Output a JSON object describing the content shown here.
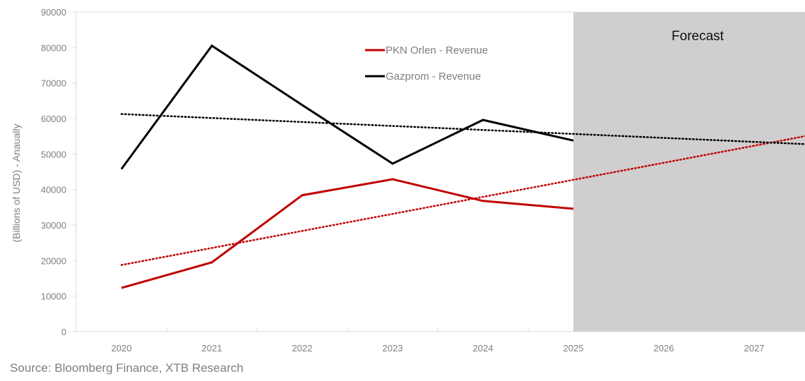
{
  "chart_data": {
    "type": "line",
    "title": "",
    "xlabel": "",
    "ylabel": "(Billions of USD) - Anaually",
    "categories": [
      "2020",
      "2021",
      "2022",
      "2023",
      "2024",
      "2025",
      "2026",
      "2027"
    ],
    "ylim": [
      0,
      90000
    ],
    "yticks": [
      0,
      10000,
      20000,
      30000,
      40000,
      50000,
      60000,
      70000,
      80000,
      90000
    ],
    "grid": false,
    "legend_position": "top-center",
    "series": [
      {
        "name": "PKN Orlen - Revenue",
        "color": "#c00000",
        "values": [
          12300,
          19500,
          38400,
          42900,
          36800,
          34600
        ],
        "trendline": "linear"
      },
      {
        "name": "Gazprom - Revenue",
        "color": "#000000",
        "values": [
          45800,
          80500,
          63800,
          47300,
          59600,
          53800
        ],
        "trendline": "linear"
      }
    ],
    "forecast_region": {
      "from": "2025",
      "to": "2027",
      "label": "Forecast",
      "color": "#d0cecf"
    },
    "source": "Source: Bloomberg Finance, XTB Research"
  }
}
